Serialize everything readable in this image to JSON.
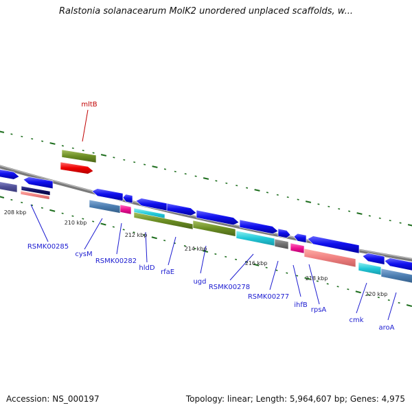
{
  "title": "Ralstonia solanacearum MolK2 unordered unplaced scaffolds, w...",
  "footer": {
    "accession": "Accession: NS_000197",
    "stats": "Topology: linear; Length: 5,964,607 bp; Genes: 4,975"
  },
  "colors": {
    "backbone": "#8a8a8a",
    "gene_label": "#1a1ad0",
    "highlight_label": "#c00000",
    "tick_minor": "#1e6e1e",
    "tick_major": "#1e6e1e",
    "callout_line": "#1a1ad0",
    "callout_line_highlight": "#c00000"
  },
  "scale_labels": [
    "208 kbp",
    "210 kbp",
    "212 kbp",
    "214 kbp",
    "216 kbp",
    "218 kbp",
    "220 kbp"
  ],
  "gene_labels": [
    {
      "name": "mltB",
      "highlight": true
    },
    {
      "name": "RSMK00285",
      "highlight": false
    },
    {
      "name": "cysM",
      "highlight": false
    },
    {
      "name": "RSMK00282",
      "highlight": false
    },
    {
      "name": "hldD",
      "highlight": false
    },
    {
      "name": "rfaE",
      "highlight": false
    },
    {
      "name": "ugd",
      "highlight": false
    },
    {
      "name": "RSMK00278",
      "highlight": false
    },
    {
      "name": "RSMK00277",
      "highlight": false
    },
    {
      "name": "ihfB",
      "highlight": false
    },
    {
      "name": "rpsA",
      "highlight": false
    },
    {
      "name": "cmk",
      "highlight": false
    },
    {
      "name": "aroA",
      "highlight": false
    }
  ]
}
